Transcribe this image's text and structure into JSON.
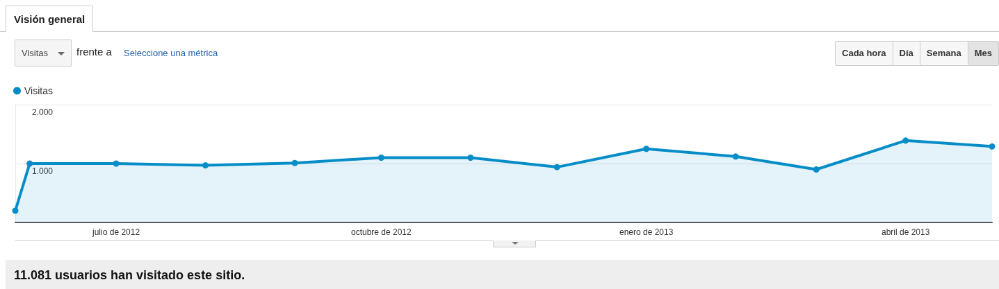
{
  "chart_data": {
    "type": "area",
    "title": "Visión general",
    "annotations": [
      "Visitas",
      "frente a",
      "Seleccione una métrica",
      "Cada hora",
      "Día",
      "Semana",
      "Mes",
      "11.081 usuarios han visitado este sitio."
    ],
    "x": [
      "2012-05-27",
      "2012-06-01",
      "2012-07-01",
      "2012-08-01",
      "2012-09-01",
      "2012-10-01",
      "2012-11-01",
      "2012-12-01",
      "2013-01-01",
      "2013-02-01",
      "2013-03-01",
      "2013-04-01",
      "2013-05-01"
    ],
    "series": [
      {
        "name": "Visitas",
        "color": "#058dc7",
        "values": [
          200,
          1000,
          1000,
          970,
          1010,
          1100,
          1100,
          940,
          1250,
          1120,
          900,
          1390,
          1290
        ]
      }
    ],
    "xlim": [
      "2012-05-27",
      "2013-05-01"
    ],
    "xticks": [
      {
        "value": "2012-07-01",
        "label": "julio de 2012"
      },
      {
        "value": "2012-10-01",
        "label": "octubre de 2012"
      },
      {
        "value": "2013-01-01",
        "label": "enero de 2013"
      },
      {
        "value": "2013-04-01",
        "label": "abril de 2013"
      }
    ],
    "ylim": [
      0,
      2000
    ],
    "yticks": [
      {
        "value": 0,
        "label": null
      },
      {
        "value": 1000,
        "label": "1.000"
      },
      {
        "value": 2000,
        "label": "2.000"
      }
    ],
    "grid": "y",
    "legend": "top left",
    "marker": "circle",
    "line_style": "solid"
  }
}
